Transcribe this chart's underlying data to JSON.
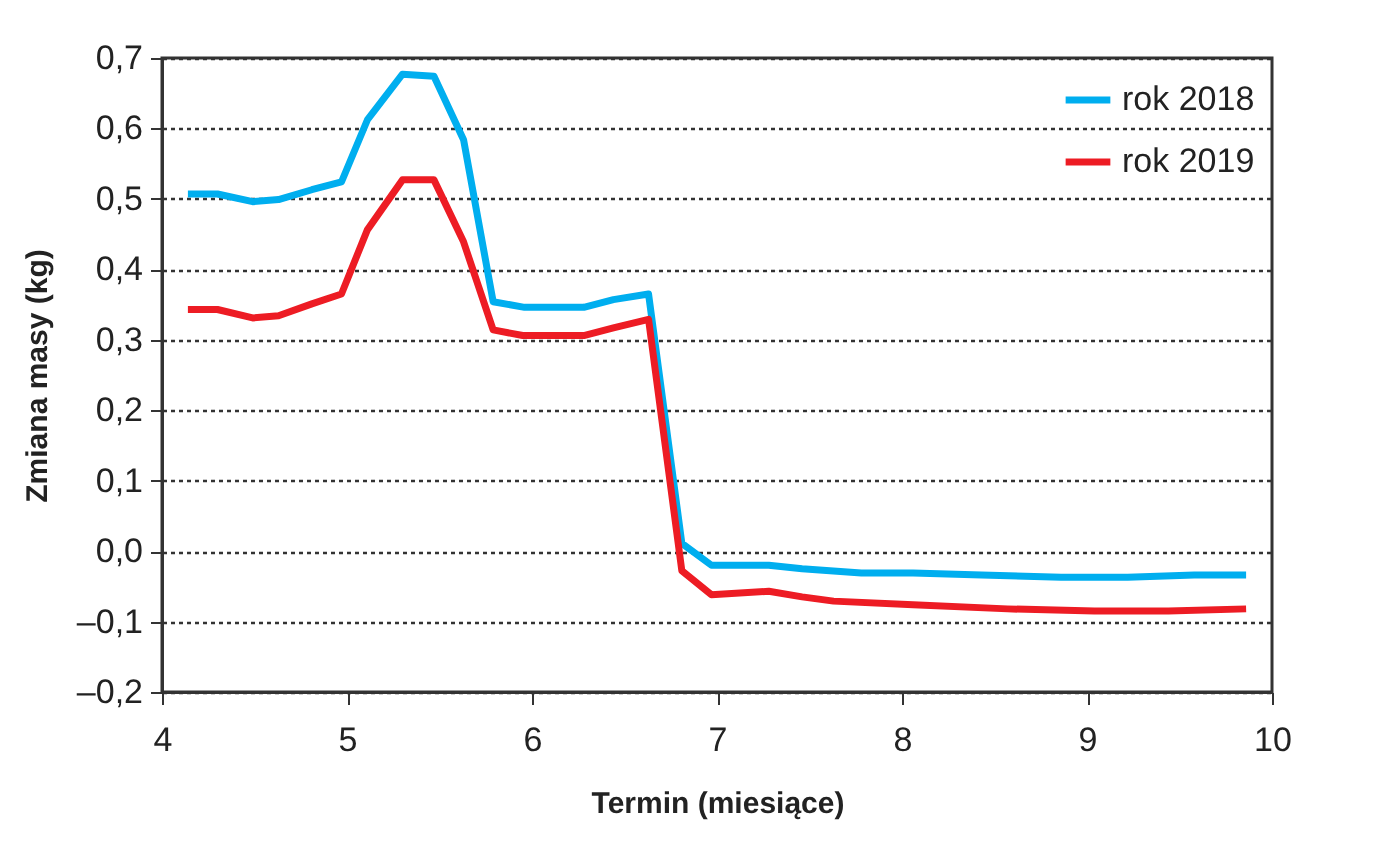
{
  "chart_data": {
    "type": "line",
    "xlabel": "Termin (miesiące)",
    "ylabel": "Zmiana masy (kg)",
    "xlim": [
      4,
      10
    ],
    "xticks": [
      4,
      5,
      6,
      7,
      8,
      9,
      10
    ],
    "ylim": [
      -0.2,
      0.7
    ],
    "yticks": [
      {
        "value": -0.2,
        "label": "–0,2"
      },
      {
        "value": -0.1,
        "label": "–0,1"
      },
      {
        "value": 0,
        "label": "0,0"
      },
      {
        "value": 0.1,
        "label": "0,1"
      },
      {
        "value": 0.2,
        "label": "0,2"
      },
      {
        "value": 0.3,
        "label": "0,3"
      },
      {
        "value": 0.4,
        "label": "0,4"
      },
      {
        "value": 0.5,
        "label": "0,5"
      },
      {
        "value": 0.6,
        "label": "0,6"
      },
      {
        "value": 0.7,
        "label": "0,7"
      }
    ],
    "grid": "y",
    "legend": "top right",
    "marker": "none",
    "line_style": "solid",
    "series": [
      {
        "name": "rok 2018",
        "color": "#00aeef",
        "x": [
          4.14,
          4.3,
          4.49,
          4.63,
          4.81,
          4.97,
          5.11,
          5.3,
          5.47,
          5.63,
          5.79,
          5.96,
          6.28,
          6.44,
          6.63,
          6.81,
          6.97,
          7.28,
          7.46,
          7.78,
          8.06,
          8.43,
          8.86,
          9.22,
          9.58,
          9.86
        ],
        "values": [
          0.507,
          0.507,
          0.496,
          0.499,
          0.513,
          0.524,
          0.612,
          0.677,
          0.674,
          0.584,
          0.354,
          0.346,
          0.346,
          0.357,
          0.365,
          0.011,
          -0.02,
          -0.02,
          -0.025,
          -0.031,
          -0.031,
          -0.034,
          -0.037,
          -0.037,
          -0.034,
          -0.034
        ]
      },
      {
        "name": "rok 2019",
        "color": "#ed1c24",
        "x": [
          4.14,
          4.3,
          4.49,
          4.63,
          4.81,
          4.97,
          5.11,
          5.3,
          5.47,
          5.63,
          5.79,
          5.95,
          6.28,
          6.44,
          6.63,
          6.81,
          6.97,
          7.28,
          7.46,
          7.63,
          8.06,
          8.57,
          9.04,
          9.44,
          9.86
        ],
        "values": [
          0.343,
          0.343,
          0.331,
          0.334,
          0.351,
          0.365,
          0.456,
          0.527,
          0.527,
          0.439,
          0.314,
          0.306,
          0.306,
          0.317,
          0.329,
          -0.028,
          -0.062,
          -0.057,
          -0.065,
          -0.071,
          -0.076,
          -0.082,
          -0.085,
          -0.085,
          -0.082
        ]
      }
    ]
  }
}
